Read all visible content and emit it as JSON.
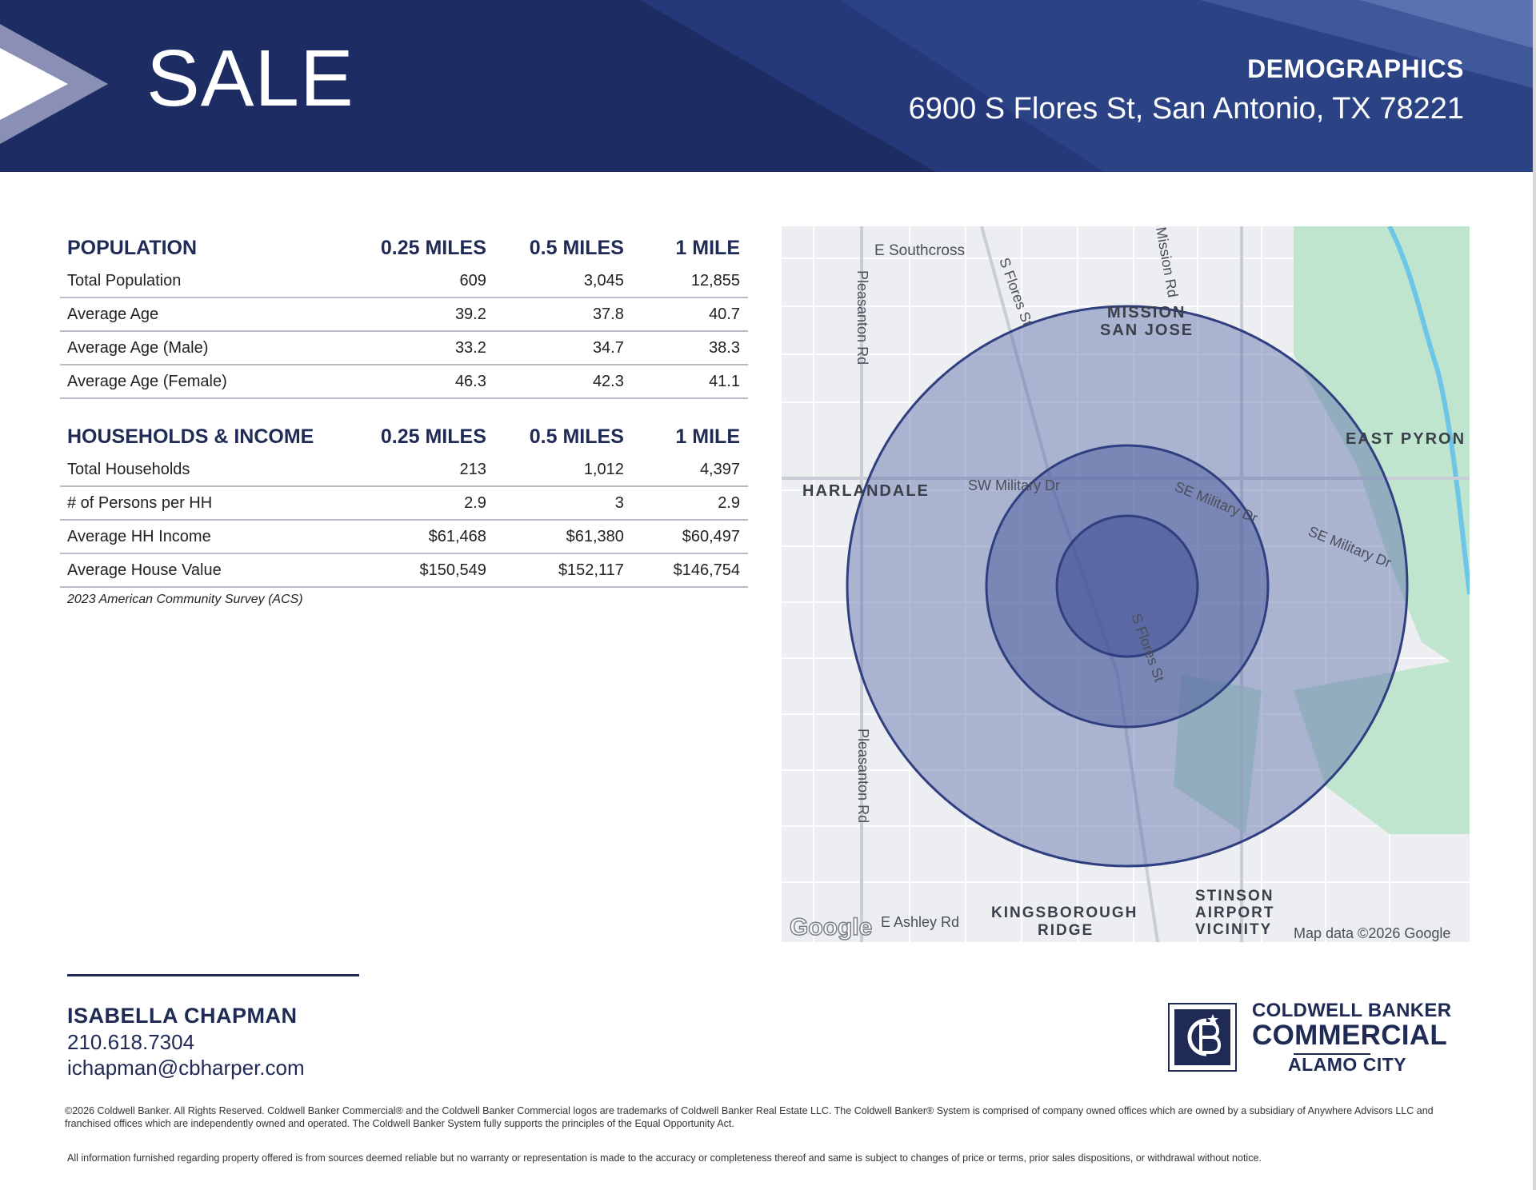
{
  "header": {
    "sale_label": "SALE",
    "section_title": "DEMOGRAPHICS",
    "address": "6900 S Flores St, San Antonio, TX 78221"
  },
  "population": {
    "headers": [
      "POPULATION",
      "0.25 MILES",
      "0.5 MILES",
      "1 MILE"
    ],
    "rows": [
      [
        "Total Population",
        "609",
        "3,045",
        "12,855"
      ],
      [
        "Average Age",
        "39.2",
        "37.8",
        "40.7"
      ],
      [
        "Average Age (Male)",
        "33.2",
        "34.7",
        "38.3"
      ],
      [
        "Average Age (Female)",
        "46.3",
        "42.3",
        "41.1"
      ]
    ]
  },
  "households": {
    "headers": [
      "HOUSEHOLDS & INCOME",
      "0.25 MILES",
      "0.5 MILES",
      "1 MILE"
    ],
    "rows": [
      [
        "Total Households",
        "213",
        "1,012",
        "4,397"
      ],
      [
        "# of Persons per HH",
        "2.9",
        "3",
        "2.9"
      ],
      [
        "Average HH Income",
        "$61,468",
        "$61,380",
        "$60,497"
      ],
      [
        "Average House Value",
        "$150,549",
        "$152,117",
        "$146,754"
      ]
    ]
  },
  "source_note": "2023 American Community Survey (ACS)",
  "map": {
    "labels": {
      "e_southcross": "E Southcross",
      "pleasanton_top": "Pleasanton Rd",
      "s_flores_top": "S Flores St",
      "mission_rd": "Mission Rd",
      "mission_san_jose_1": "MISSION",
      "mission_san_jose_2": "SAN JOSE",
      "east_pyron": "EAST PYRON",
      "harlandale": "HARLANDALE",
      "sw_military": "SW Military Dr",
      "se_military_1": "SE Military Dr",
      "se_military_2": "SE Military Dr",
      "s_flores_mid": "S Flores St",
      "pleasanton_bottom": "Pleasanton Rd",
      "e_ashley": "E Ashley Rd",
      "kingsborough_1": "KINGSBOROUGH",
      "kingsborough_2": "RIDGE",
      "stinson_1": "STINSON",
      "stinson_2": "AIRPORT",
      "stinson_3": "VICINITY",
      "google": "Google",
      "map_data": "Map data ©2026 Google"
    },
    "colors": {
      "ring_fill": "#5a6aa8",
      "ring_stroke": "#2f3f80",
      "park": "#b9e3cc",
      "water": "#6ec6e6"
    }
  },
  "agent": {
    "name": "ISABELLA CHAPMAN",
    "phone": "210.618.7304",
    "email": "ichapman@cbharper.com"
  },
  "logo": {
    "line1": "COLDWELL BANKER",
    "line2": "COMMERCIAL",
    "line3": "ALAMO CITY",
    "monogram": "CB"
  },
  "legal": {
    "line1": "©2026 Coldwell Banker. All Rights Reserved. Coldwell Banker Commercial® and the Coldwell Banker Commercial logos are trademarks of Coldwell Banker Real Estate LLC. The Coldwell Banker® System is comprised of company owned offices which are owned by a subsidiary of Anywhere Advisors LLC and franchised offices which are independently owned and operated. The Coldwell Banker System fully supports the principles of the Equal Opportunity Act.",
    "line2": "All information furnished regarding property offered is from sources deemed reliable but no warranty or representation is made to the accuracy or completeness thereof and same is subject to changes of price or terms, prior sales dispositions, or withdrawal without notice."
  }
}
